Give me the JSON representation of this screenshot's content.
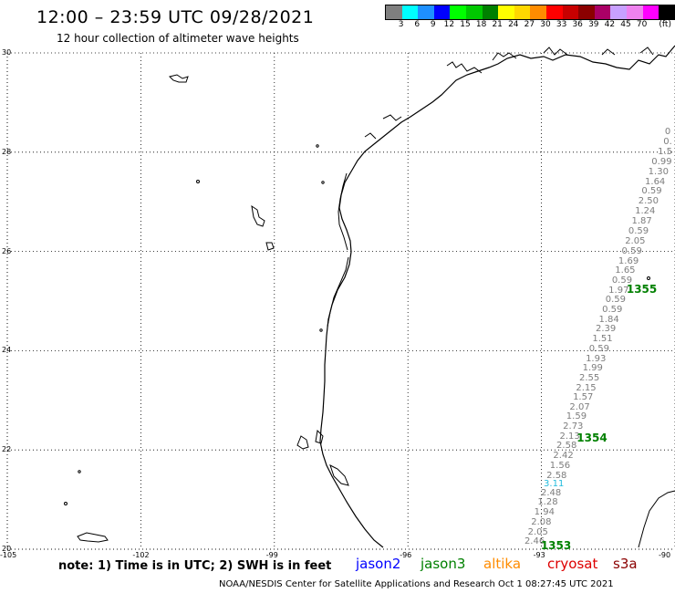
{
  "header": {
    "title": "12:00 – 23:59 UTC 09/28/2021",
    "subtitle": "12 hour collection of altimeter wave heights"
  },
  "legend": {
    "colors": [
      "#7f7f7f",
      "#00ffff",
      "#1e90ff",
      "#0000ff",
      "#00ff00",
      "#00c800",
      "#008000",
      "#ffff00",
      "#ffd700",
      "#ff8c00",
      "#ff0000",
      "#c80000",
      "#8b0000",
      "#aa0066",
      "#c8a0ff",
      "#ee82ee",
      "#ff00ff",
      "#000000"
    ],
    "labels": [
      "3",
      "6",
      "9",
      "12",
      "15",
      "18",
      "21",
      "24",
      "27",
      "30",
      "33",
      "36",
      "39",
      "42",
      "45",
      "70",
      "(ft)"
    ]
  },
  "axes": {
    "lat_labels": [
      "30",
      "28",
      "26",
      "24",
      "22",
      "20"
    ],
    "lon_labels": [
      "-105",
      "-102",
      "-99",
      "-96",
      "-93",
      "-90"
    ]
  },
  "track": {
    "values": [
      {
        "text": "2.46",
        "lat": 20.12,
        "color": "#7d7d7d"
      },
      {
        "text": "2.05",
        "lat": 20.32,
        "color": "#7d7d7d"
      },
      {
        "text": "2.08",
        "lat": 20.52,
        "color": "#7d7d7d"
      },
      {
        "text": "1.94",
        "lat": 20.71,
        "color": "#7d7d7d"
      },
      {
        "text": "1.28",
        "lat": 20.91,
        "color": "#7d7d7d"
      },
      {
        "text": "2.48",
        "lat": 21.11,
        "color": "#7d7d7d"
      },
      {
        "text": "3.11",
        "lat": 21.28,
        "color": "#22bbdd"
      },
      {
        "text": "2.58",
        "lat": 21.45,
        "color": "#7d7d7d"
      },
      {
        "text": "1.56",
        "lat": 21.65,
        "color": "#7d7d7d"
      },
      {
        "text": "2.42",
        "lat": 21.85,
        "color": "#7d7d7d"
      },
      {
        "text": "2.58",
        "lat": 22.05,
        "color": "#7d7d7d"
      },
      {
        "text": "2.13",
        "lat": 22.24,
        "color": "#7d7d7d"
      },
      {
        "text": "2.73",
        "lat": 22.44,
        "color": "#7d7d7d"
      },
      {
        "text": "1.59",
        "lat": 22.64,
        "color": "#7d7d7d"
      },
      {
        "text": "2.07",
        "lat": 22.84,
        "color": "#7d7d7d"
      },
      {
        "text": "1.57",
        "lat": 23.04,
        "color": "#7d7d7d"
      },
      {
        "text": "2.15",
        "lat": 23.22,
        "color": "#7d7d7d"
      },
      {
        "text": "2.55",
        "lat": 23.42,
        "color": "#7d7d7d"
      },
      {
        "text": "1.99",
        "lat": 23.62,
        "color": "#7d7d7d"
      },
      {
        "text": "1.93",
        "lat": 23.81,
        "color": "#7d7d7d"
      },
      {
        "text": "0.59",
        "lat": 24.01,
        "color": "#7d7d7d"
      },
      {
        "text": "1.51",
        "lat": 24.21,
        "color": "#7d7d7d"
      },
      {
        "text": "2.39",
        "lat": 24.41,
        "color": "#7d7d7d"
      },
      {
        "text": "1.84",
        "lat": 24.6,
        "color": "#7d7d7d"
      },
      {
        "text": "0.59",
        "lat": 24.8,
        "color": "#7d7d7d"
      },
      {
        "text": "0.59",
        "lat": 25.0,
        "color": "#7d7d7d"
      },
      {
        "text": "1.97",
        "lat": 25.19,
        "color": "#7d7d7d"
      },
      {
        "text": "0.59",
        "lat": 25.39,
        "color": "#7d7d7d"
      },
      {
        "text": "1.65",
        "lat": 25.58,
        "color": "#7d7d7d"
      },
      {
        "text": "1.69",
        "lat": 25.78,
        "color": "#7d7d7d"
      },
      {
        "text": "0.59",
        "lat": 25.98,
        "color": "#7d7d7d"
      },
      {
        "text": "2.05",
        "lat": 26.18,
        "color": "#7d7d7d"
      },
      {
        "text": "0.59",
        "lat": 26.38,
        "color": "#7d7d7d"
      },
      {
        "text": "1.87",
        "lat": 26.58,
        "color": "#7d7d7d"
      },
      {
        "text": "1.24",
        "lat": 26.78,
        "color": "#7d7d7d"
      },
      {
        "text": "2.50",
        "lat": 26.98,
        "color": "#7d7d7d"
      },
      {
        "text": "0.59",
        "lat": 27.18,
        "color": "#7d7d7d"
      },
      {
        "text": "1.64",
        "lat": 27.38,
        "color": "#7d7d7d"
      },
      {
        "text": "1.30",
        "lat": 27.58,
        "color": "#7d7d7d"
      },
      {
        "text": "0.99",
        "lat": 27.78,
        "color": "#7d7d7d"
      },
      {
        "text": "1.5",
        "lat": 27.98,
        "color": "#7d7d7d"
      },
      {
        "text": "0.",
        "lat": 28.18,
        "color": "#7d7d7d"
      },
      {
        "text": "0",
        "lat": 28.38,
        "color": "#7d7d7d"
      }
    ],
    "pass_labels": [
      {
        "text": "1353",
        "lat": 20.05
      },
      {
        "text": "1354",
        "lat": 22.22
      },
      {
        "text": "1355",
        "lat": 25.22
      }
    ]
  },
  "footer": {
    "note": "note: 1) Time is in UTC; 2) SWH is in feet",
    "satellites": [
      {
        "name": "jason2",
        "color": "#0000ff"
      },
      {
        "name": "jason3",
        "color": "#008000"
      },
      {
        "name": "altika",
        "color": "#ff8c00"
      },
      {
        "name": "cryosat",
        "color": "#dd0000"
      },
      {
        "name": "s3a",
        "color": "#8b0000"
      }
    ],
    "credit": "NOAA/NESDIS Center for Satellite Applications and Research    Oct  1 08:27:45 UTC 2021"
  }
}
